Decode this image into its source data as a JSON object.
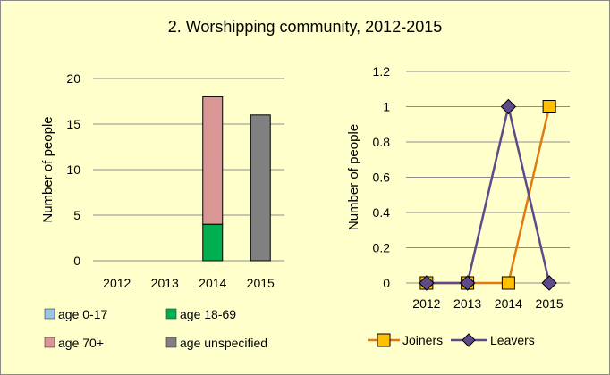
{
  "title": "2. Worshipping community, 2012-2015",
  "colors": {
    "background": "#FFFFCC",
    "age_0_17": "#9DC3E6",
    "age_18_69": "#00B050",
    "age_70_plus": "#D99694",
    "age_unspecified": "#808080",
    "joiners": "#E07A10",
    "joiners_marker": "#FFC000",
    "leavers": "#5E4A8B"
  },
  "chart_data": [
    {
      "type": "bar",
      "stacked": true,
      "categories": [
        "2012",
        "2013",
        "2014",
        "2015"
      ],
      "series": [
        {
          "name": "age 0-17",
          "values": [
            0,
            0,
            0,
            0
          ]
        },
        {
          "name": "age 18-69",
          "values": [
            0,
            0,
            4,
            0
          ]
        },
        {
          "name": "age 70+",
          "values": [
            0,
            0,
            14,
            0
          ]
        },
        {
          "name": "age unspecified",
          "values": [
            0,
            0,
            0,
            16
          ]
        }
      ],
      "ylabel": "Number of people",
      "ylim": [
        0,
        20
      ],
      "yticks": [
        "0",
        "5",
        "10",
        "15",
        "20"
      ],
      "grid": true,
      "legend": "bottom"
    },
    {
      "type": "line",
      "categories": [
        "2012",
        "2013",
        "2014",
        "2015"
      ],
      "series": [
        {
          "name": "Joiners",
          "values": [
            0,
            0,
            0,
            1
          ]
        },
        {
          "name": "Leavers",
          "values": [
            0,
            0,
            1,
            0
          ]
        }
      ],
      "ylabel": "Number of people",
      "ylim": [
        0,
        1.2
      ],
      "yticks": [
        "0",
        "0.2",
        "0.4",
        "0.6",
        "0.8",
        "1",
        "1.2"
      ],
      "grid": true,
      "legend": "bottom"
    }
  ]
}
